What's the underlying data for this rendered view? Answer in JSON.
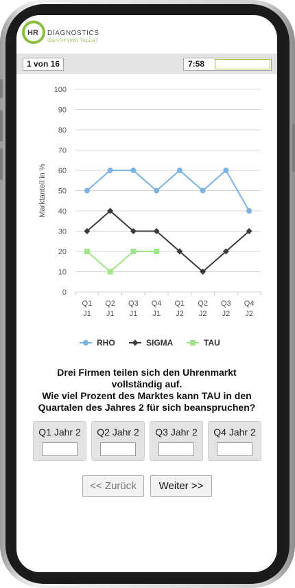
{
  "header": {
    "logo_mark": "HR",
    "brand_name": "DIAGNOSTICS",
    "tagline": "IDENTIFYING TALENT",
    "brand_color": "#8cbf3f"
  },
  "status": {
    "question_counter": "1 von 16",
    "time_remaining": "7:58",
    "progress_fraction": 0.0
  },
  "chart_data": {
    "type": "line",
    "ylabel": "Marktanteil in %",
    "ylim": [
      0,
      100
    ],
    "yticks": [
      "0",
      "10",
      "20",
      "30",
      "40",
      "50",
      "60",
      "70",
      "80",
      "90",
      "100"
    ],
    "categories": [
      {
        "q": "Q1",
        "j": "J1"
      },
      {
        "q": "Q2",
        "j": "J1"
      },
      {
        "q": "Q3",
        "j": "J1"
      },
      {
        "q": "Q4",
        "j": "J1"
      },
      {
        "q": "Q1",
        "j": "J2"
      },
      {
        "q": "Q2",
        "j": "J2"
      },
      {
        "q": "Q3",
        "j": "J2"
      },
      {
        "q": "Q4",
        "j": "J2"
      }
    ],
    "grid": true,
    "legend_position": "bottom",
    "series": [
      {
        "name": "RHO",
        "values": [
          50,
          60,
          60,
          50,
          60,
          50,
          60,
          40
        ],
        "color": "#7ab2e3",
        "marker": "circle"
      },
      {
        "name": "SIGMA",
        "values": [
          30,
          40,
          30,
          30,
          20,
          10,
          20,
          30
        ],
        "color": "#3a3a3a",
        "marker": "diamond"
      },
      {
        "name": "TAU",
        "values": [
          20,
          10,
          20,
          20,
          null,
          null,
          null,
          null
        ],
        "color": "#9ee58a",
        "marker": "square"
      }
    ]
  },
  "question": {
    "line1": "Drei Firmen teilen sich den Uhrenmarkt",
    "line2": "vollständig auf.",
    "line3": "Wie viel Prozent des Marktes kann TAU in den",
    "line4": "Quartalen des Jahres 2 für sich beanspruchen?"
  },
  "answers": [
    {
      "label": "Q1 Jahr 2",
      "value": ""
    },
    {
      "label": "Q2 Jahr 2",
      "value": ""
    },
    {
      "label": "Q3 Jahr 2",
      "value": ""
    },
    {
      "label": "Q4 Jahr 2",
      "value": ""
    }
  ],
  "nav": {
    "back_label": "<< Zurück",
    "next_label": "Weiter >>"
  }
}
